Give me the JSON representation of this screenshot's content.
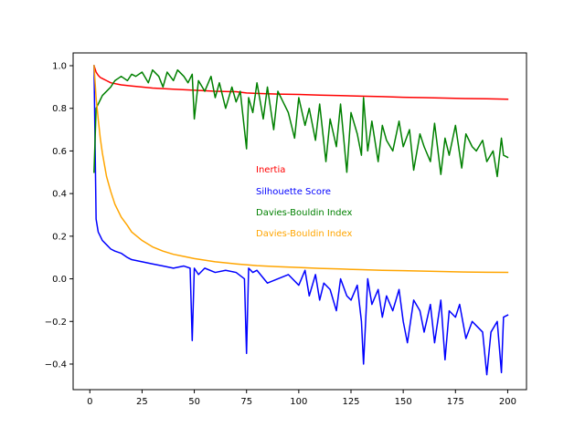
{
  "chart_data": {
    "type": "line",
    "title": "",
    "xlabel": "",
    "ylabel": "",
    "xlim": [
      -8,
      209
    ],
    "ylim": [
      -0.52,
      1.06
    ],
    "xticks": [
      0,
      25,
      50,
      75,
      100,
      125,
      150,
      175,
      200
    ],
    "yticks": [
      -0.4,
      -0.2,
      0.0,
      0.2,
      0.4,
      0.6,
      0.8,
      1.0
    ],
    "xtick_labels": [
      "0",
      "25",
      "50",
      "75",
      "100",
      "125",
      "150",
      "175",
      "200"
    ],
    "ytick_labels": [
      "−0.4",
      "−0.2",
      "0.0",
      "0.2",
      "0.4",
      "0.6",
      "0.8",
      "1.0"
    ],
    "grid": false,
    "legend_placement": "center (free text labels)",
    "series": [
      {
        "name": "Inertia",
        "color": "#ff0000",
        "x": [
          2,
          3,
          4,
          5,
          6,
          8,
          10,
          15,
          20,
          25,
          30,
          40,
          50,
          60,
          70,
          75,
          80,
          90,
          100,
          110,
          120,
          130,
          140,
          150,
          160,
          170,
          180,
          190,
          200
        ],
        "values": [
          1.0,
          0.97,
          0.955,
          0.945,
          0.94,
          0.93,
          0.92,
          0.91,
          0.905,
          0.9,
          0.895,
          0.89,
          0.885,
          0.88,
          0.878,
          0.872,
          0.87,
          0.867,
          0.865,
          0.862,
          0.86,
          0.857,
          0.855,
          0.852,
          0.85,
          0.848,
          0.846,
          0.845,
          0.843
        ]
      },
      {
        "name": "Silhouette Score",
        "color": "#0000ff",
        "x": [
          2,
          3,
          4,
          5,
          6,
          8,
          10,
          12,
          15,
          18,
          20,
          25,
          30,
          35,
          40,
          45,
          48,
          49,
          50,
          52,
          55,
          60,
          65,
          70,
          74,
          75,
          76,
          78,
          80,
          85,
          90,
          95,
          100,
          103,
          105,
          108,
          110,
          112,
          115,
          118,
          120,
          123,
          125,
          128,
          130,
          131,
          133,
          135,
          138,
          140,
          142,
          145,
          148,
          150,
          152,
          155,
          158,
          160,
          163,
          165,
          168,
          170,
          172,
          175,
          177,
          180,
          183,
          185,
          188,
          190,
          192,
          195,
          197,
          198,
          200
        ],
        "values": [
          1.0,
          0.28,
          0.22,
          0.2,
          0.18,
          0.16,
          0.14,
          0.13,
          0.12,
          0.1,
          0.09,
          0.08,
          0.07,
          0.06,
          0.05,
          0.06,
          0.05,
          -0.29,
          0.05,
          0.02,
          0.05,
          0.03,
          0.04,
          0.03,
          0.0,
          -0.35,
          0.05,
          0.03,
          0.04,
          -0.02,
          0.0,
          0.02,
          -0.03,
          0.04,
          -0.08,
          0.02,
          -0.1,
          -0.02,
          -0.05,
          -0.15,
          0.0,
          -0.08,
          -0.1,
          -0.03,
          -0.2,
          -0.4,
          0.0,
          -0.12,
          -0.05,
          -0.18,
          -0.08,
          -0.15,
          -0.05,
          -0.2,
          -0.3,
          -0.1,
          -0.15,
          -0.25,
          -0.12,
          -0.3,
          -0.1,
          -0.38,
          -0.15,
          -0.18,
          -0.12,
          -0.28,
          -0.2,
          -0.22,
          -0.25,
          -0.45,
          -0.25,
          -0.2,
          -0.44,
          -0.18,
          -0.17
        ]
      },
      {
        "name": "Davies-Bouldin Index",
        "color": "#008000",
        "x": [
          2,
          3,
          4,
          5,
          6,
          8,
          10,
          12,
          15,
          18,
          20,
          22,
          25,
          28,
          30,
          33,
          35,
          37,
          40,
          42,
          45,
          47,
          49,
          50,
          52,
          55,
          58,
          60,
          62,
          65,
          68,
          70,
          72,
          75,
          76,
          78,
          80,
          83,
          85,
          88,
          90,
          93,
          95,
          98,
          100,
          103,
          105,
          108,
          110,
          113,
          115,
          118,
          120,
          123,
          125,
          128,
          130,
          131,
          133,
          135,
          138,
          140,
          142,
          145,
          148,
          150,
          153,
          155,
          158,
          160,
          163,
          165,
          168,
          170,
          172,
          175,
          178,
          180,
          183,
          185,
          188,
          190,
          193,
          195,
          197,
          198,
          200
        ],
        "values": [
          0.5,
          0.8,
          0.82,
          0.84,
          0.86,
          0.88,
          0.9,
          0.93,
          0.95,
          0.93,
          0.96,
          0.95,
          0.97,
          0.92,
          0.98,
          0.95,
          0.9,
          0.97,
          0.93,
          0.98,
          0.95,
          0.92,
          0.96,
          0.75,
          0.93,
          0.88,
          0.95,
          0.85,
          0.92,
          0.8,
          0.9,
          0.83,
          0.88,
          0.61,
          0.85,
          0.78,
          0.92,
          0.75,
          0.9,
          0.7,
          0.88,
          0.82,
          0.78,
          0.66,
          0.85,
          0.72,
          0.8,
          0.65,
          0.82,
          0.55,
          0.75,
          0.62,
          0.82,
          0.5,
          0.78,
          0.68,
          0.58,
          0.85,
          0.6,
          0.74,
          0.55,
          0.72,
          0.65,
          0.6,
          0.74,
          0.62,
          0.7,
          0.51,
          0.68,
          0.62,
          0.55,
          0.73,
          0.49,
          0.66,
          0.58,
          0.72,
          0.52,
          0.68,
          0.62,
          0.6,
          0.65,
          0.55,
          0.6,
          0.48,
          0.66,
          0.58,
          0.57
        ]
      },
      {
        "name": "Davies-Bouldin Index",
        "color": "#ffa500",
        "x": [
          2,
          3,
          4,
          5,
          6,
          8,
          10,
          12,
          15,
          18,
          20,
          25,
          30,
          35,
          40,
          45,
          50,
          60,
          70,
          80,
          90,
          100,
          110,
          120,
          130,
          140,
          150,
          160,
          170,
          180,
          190,
          200
        ],
        "values": [
          1.0,
          0.85,
          0.75,
          0.66,
          0.59,
          0.48,
          0.41,
          0.35,
          0.29,
          0.25,
          0.22,
          0.18,
          0.15,
          0.13,
          0.115,
          0.105,
          0.095,
          0.08,
          0.07,
          0.062,
          0.057,
          0.053,
          0.049,
          0.046,
          0.043,
          0.04,
          0.038,
          0.036,
          0.034,
          0.032,
          0.031,
          0.03
        ]
      }
    ],
    "legend_entries": [
      "Inertia",
      "Silhouette Score",
      "Davies-Bouldin Index",
      "Davies-Bouldin Index"
    ]
  }
}
